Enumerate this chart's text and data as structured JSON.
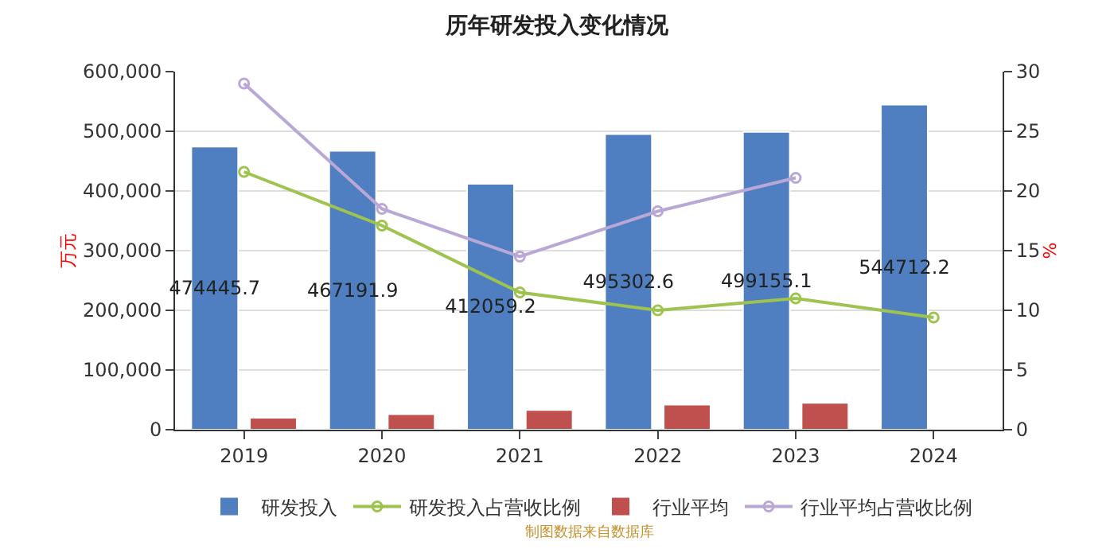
{
  "chart_data": {
    "type": "bar",
    "title": "历年研发投入变化情况",
    "ylabel": "万元",
    "y2label": "%",
    "categories": [
      "2019",
      "2020",
      "2021",
      "2022",
      "2023",
      "2024"
    ],
    "series": [
      {
        "name": "研发投入",
        "color": "#4f7fc0",
        "values": [
          474445.7,
          467191.9,
          412059.2,
          495302.6,
          499155.1,
          544712.2
        ],
        "value_labels": [
          "474445.7",
          "467191.9",
          "412059.2",
          "495302.6",
          "499155.1",
          "544712.2"
        ]
      },
      {
        "name": "研发投入占营收比例",
        "type": "line",
        "axis": "y2",
        "color": "#9ec34f",
        "marker": "circle",
        "values": [
          21.6,
          17.1,
          11.5,
          10.0,
          11.0,
          9.4
        ]
      },
      {
        "name": "行业平均",
        "color": "#c0504d",
        "values": [
          20000,
          26000,
          33000,
          42000,
          45000,
          null
        ]
      },
      {
        "name": "行业平均占营收比例",
        "type": "line",
        "axis": "y2",
        "color": "#b9a8d6",
        "marker": "circle",
        "values": [
          29.0,
          18.5,
          14.5,
          18.3,
          21.1,
          null
        ]
      }
    ],
    "ylim": [
      0,
      600000
    ],
    "yticks": [
      {
        "value": 0,
        "label": "0"
      },
      {
        "value": 100000,
        "label": "100,000"
      },
      {
        "value": 200000,
        "label": "200,000"
      },
      {
        "value": 300000,
        "label": "300,000"
      },
      {
        "value": 400000,
        "label": "400,000"
      },
      {
        "value": 500000,
        "label": "500,000"
      },
      {
        "value": 600000,
        "label": "600,000"
      }
    ],
    "y2lim": [
      0,
      30
    ],
    "y2ticks": [
      0,
      5,
      10,
      15,
      20,
      25,
      30
    ],
    "grid": "y",
    "legend": "bottom",
    "annotations": [
      "制图数据来自数据库"
    ]
  }
}
